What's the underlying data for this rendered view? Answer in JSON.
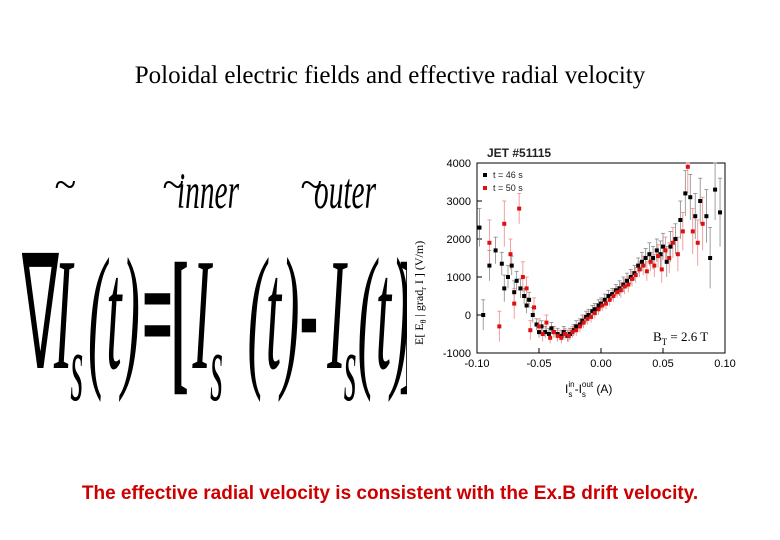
{
  "slide": {
    "title": "Poloidal electric fields and effective radial velocity",
    "footer": "The effective radial velocity is consistent with the Ex.B drift velocity.",
    "footer_color": "#cc0000"
  },
  "formula": {
    "nabla": "∇",
    "tilde": "~",
    "I": "I",
    "s": "s",
    "t": "(t)",
    "equals": "=",
    "lbracket": "[",
    "rbracket": "]",
    "minus": "-",
    "inner": "inner",
    "outer": "outer"
  },
  "chart_data": {
    "type": "scatter",
    "title": "JET #51115",
    "annotation": "B",
    "annotation_sub": "T",
    "annotation_value": " = 2.6 T",
    "xlabel": "I",
    "xlabel_sup_in": "in",
    "xlabel_sub_s1": "s",
    "xlabel_mid": "-I",
    "xlabel_sup_out": "out",
    "xlabel_sub_s2": "s",
    "xlabel_unit": " (A)",
    "ylabel": "E[ E",
    "ylabel_sub": "θ",
    "ylabel_mid": " | grad",
    "ylabel_sub2": "r",
    "ylabel_end": " I ] (V/m)",
    "xlim": [
      -0.1,
      0.1
    ],
    "ylim": [
      -1000,
      4000
    ],
    "xticks": [
      "-0.10",
      "-0.05",
      "0.00",
      "0.05",
      "0.10"
    ],
    "xtick_values": [
      -0.1,
      -0.05,
      0.0,
      0.05,
      0.1
    ],
    "yticks": [
      "-1000",
      "0",
      "1000",
      "2000",
      "3000",
      "4000"
    ],
    "ytick_values": [
      -1000,
      0,
      1000,
      2000,
      3000,
      4000
    ],
    "grid": false,
    "legend_position": "top-left",
    "series": [
      {
        "name": "t = 46 s",
        "color": "#000000",
        "points": [
          [
            -0.098,
            2300,
            500
          ],
          [
            -0.095,
            0,
            400
          ],
          [
            -0.09,
            1300,
            400
          ],
          [
            -0.085,
            1700,
            350
          ],
          [
            -0.08,
            1350,
            300
          ],
          [
            -0.078,
            700,
            350
          ],
          [
            -0.075,
            1000,
            300
          ],
          [
            -0.072,
            1300,
            250
          ],
          [
            -0.07,
            600,
            300
          ],
          [
            -0.068,
            900,
            250
          ],
          [
            -0.065,
            700,
            250
          ],
          [
            -0.062,
            500,
            200
          ],
          [
            -0.06,
            250,
            200
          ],
          [
            -0.058,
            400,
            200
          ],
          [
            -0.055,
            0,
            200
          ],
          [
            -0.052,
            -250,
            150
          ],
          [
            -0.05,
            -450,
            150
          ],
          [
            -0.048,
            -300,
            150
          ],
          [
            -0.045,
            -450,
            150
          ],
          [
            -0.042,
            -500,
            150
          ],
          [
            -0.04,
            -350,
            150
          ],
          [
            -0.038,
            -450,
            150
          ],
          [
            -0.035,
            -500,
            150
          ],
          [
            -0.032,
            -550,
            150
          ],
          [
            -0.03,
            -450,
            150
          ],
          [
            -0.027,
            -550,
            150
          ],
          [
            -0.025,
            -500,
            150
          ],
          [
            -0.022,
            -400,
            150
          ],
          [
            -0.02,
            -300,
            150
          ],
          [
            -0.017,
            -250,
            150
          ],
          [
            -0.015,
            -150,
            150
          ],
          [
            -0.012,
            -50,
            150
          ],
          [
            -0.01,
            0,
            150
          ],
          [
            -0.007,
            100,
            150
          ],
          [
            -0.005,
            150,
            150
          ],
          [
            -0.002,
            250,
            150
          ],
          [
            0.0,
            300,
            150
          ],
          [
            0.003,
            400,
            150
          ],
          [
            0.006,
            500,
            150
          ],
          [
            0.009,
            550,
            150
          ],
          [
            0.012,
            650,
            150
          ],
          [
            0.015,
            700,
            200
          ],
          [
            0.018,
            800,
            200
          ],
          [
            0.021,
            900,
            200
          ],
          [
            0.024,
            1000,
            200
          ],
          [
            0.027,
            1100,
            200
          ],
          [
            0.03,
            1300,
            200
          ],
          [
            0.033,
            1400,
            250
          ],
          [
            0.036,
            1500,
            250
          ],
          [
            0.039,
            1600,
            300
          ],
          [
            0.042,
            1500,
            300
          ],
          [
            0.045,
            1700,
            300
          ],
          [
            0.048,
            1600,
            350
          ],
          [
            0.05,
            1800,
            350
          ],
          [
            0.053,
            1400,
            400
          ],
          [
            0.056,
            1800,
            400
          ],
          [
            0.06,
            2000,
            400
          ],
          [
            0.064,
            2500,
            500
          ],
          [
            0.068,
            3200,
            600
          ],
          [
            0.072,
            3100,
            600
          ],
          [
            0.076,
            2600,
            600
          ],
          [
            0.08,
            3000,
            600
          ],
          [
            0.085,
            2600,
            700
          ],
          [
            0.088,
            1500,
            800
          ],
          [
            0.092,
            3300,
            800
          ],
          [
            0.096,
            2700,
            900
          ]
        ]
      },
      {
        "name": "t = 50 s",
        "color": "#dd1111",
        "points": [
          [
            -0.09,
            1900,
            600
          ],
          [
            -0.082,
            -300,
            400
          ],
          [
            -0.078,
            2400,
            600
          ],
          [
            -0.073,
            1600,
            400
          ],
          [
            -0.07,
            300,
            400
          ],
          [
            -0.066,
            2800,
            400
          ],
          [
            -0.063,
            1000,
            400
          ],
          [
            -0.06,
            700,
            300
          ],
          [
            -0.057,
            -400,
            250
          ],
          [
            -0.054,
            200,
            250
          ],
          [
            -0.05,
            -300,
            200
          ],
          [
            -0.047,
            -500,
            200
          ],
          [
            -0.044,
            -200,
            200
          ],
          [
            -0.041,
            -600,
            150
          ],
          [
            -0.038,
            -450,
            150
          ],
          [
            -0.035,
            -550,
            150
          ],
          [
            -0.032,
            -600,
            150
          ],
          [
            -0.029,
            -500,
            150
          ],
          [
            -0.026,
            -550,
            150
          ],
          [
            -0.023,
            -450,
            150
          ],
          [
            -0.02,
            -400,
            150
          ],
          [
            -0.017,
            -300,
            150
          ],
          [
            -0.014,
            -200,
            150
          ],
          [
            -0.011,
            -100,
            150
          ],
          [
            -0.008,
            -50,
            150
          ],
          [
            -0.005,
            50,
            150
          ],
          [
            -0.002,
            150,
            150
          ],
          [
            0.001,
            250,
            150
          ],
          [
            0.004,
            300,
            150
          ],
          [
            0.007,
            400,
            150
          ],
          [
            0.01,
            500,
            150
          ],
          [
            0.013,
            600,
            150
          ],
          [
            0.016,
            650,
            200
          ],
          [
            0.019,
            750,
            200
          ],
          [
            0.022,
            800,
            200
          ],
          [
            0.025,
            950,
            200
          ],
          [
            0.028,
            1050,
            200
          ],
          [
            0.031,
            1200,
            200
          ],
          [
            0.034,
            1300,
            250
          ],
          [
            0.037,
            1150,
            250
          ],
          [
            0.04,
            1400,
            250
          ],
          [
            0.043,
            1300,
            300
          ],
          [
            0.046,
            1550,
            300
          ],
          [
            0.049,
            1200,
            350
          ],
          [
            0.052,
            1700,
            350
          ],
          [
            0.055,
            1500,
            400
          ],
          [
            0.058,
            1900,
            400
          ],
          [
            0.062,
            1600,
            450
          ],
          [
            0.066,
            2200,
            500
          ],
          [
            0.07,
            3900,
            700
          ],
          [
            0.074,
            2200,
            600
          ],
          [
            0.078,
            1900,
            600
          ],
          [
            0.082,
            2400,
            700
          ]
        ]
      }
    ]
  }
}
